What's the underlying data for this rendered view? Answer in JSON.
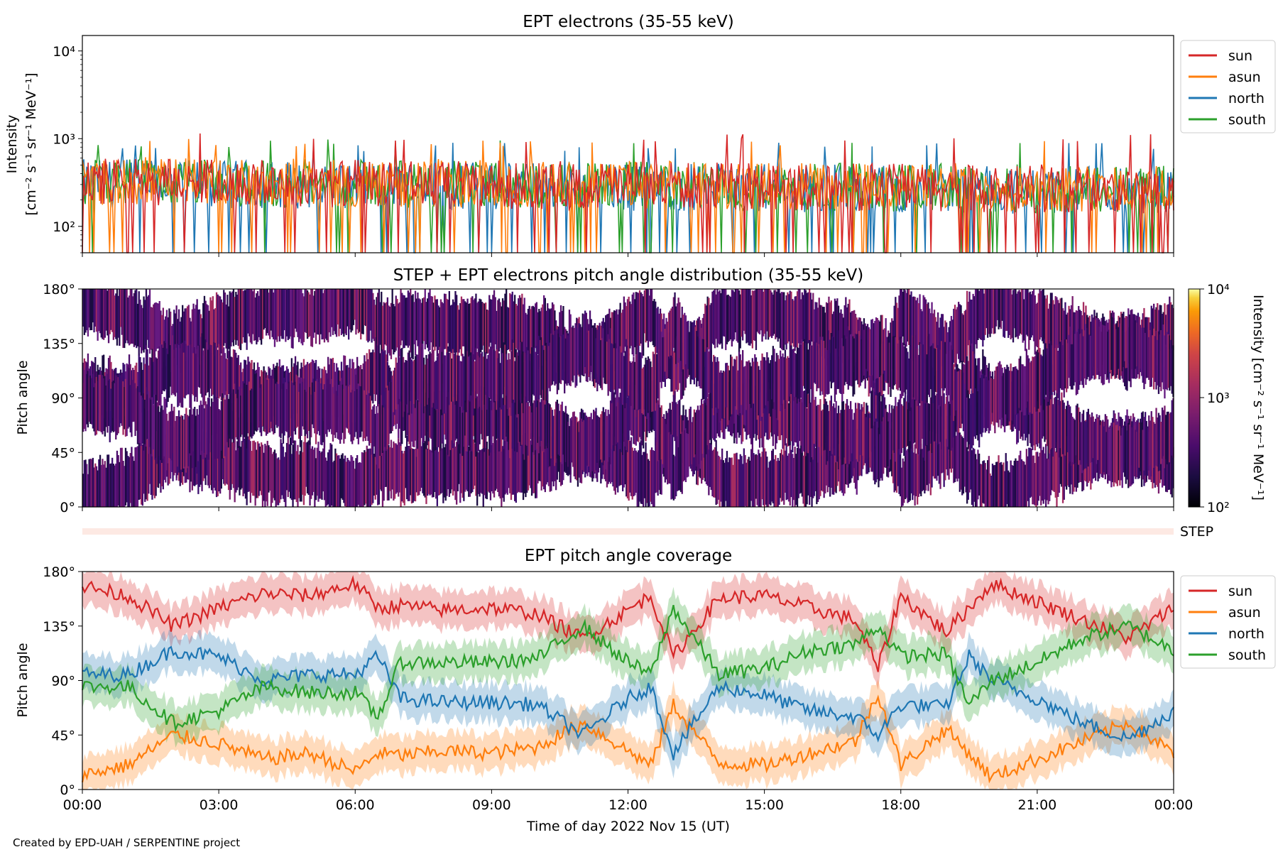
{
  "footer": {
    "credit": "Created by EPD-UAH / SERPENTINE project"
  },
  "panels": {
    "intensity": {
      "title": "EPT electrons (35-55 keV)",
      "ylabel_line1": "Intensity",
      "ylabel_line2": "[cm⁻² s⁻¹ sr⁻¹ MeV⁻¹]",
      "legend": [
        "sun",
        "asun",
        "north",
        "south"
      ]
    },
    "pad": {
      "title": "STEP + EPT electrons pitch angle distribution (35-55 keV)",
      "ylabel": "Pitch angle",
      "colorbar_label": "Intensity [cm⁻² s⁻¹ sr⁻¹ MeV⁻¹]",
      "colorbar_ticks": [
        "10⁴",
        "10³",
        "10²"
      ]
    },
    "step": {
      "label": "STEP"
    },
    "coverage": {
      "title": "EPT pitch angle coverage",
      "ylabel": "Pitch angle",
      "xlabel": "Time of day 2022 Nov 15 (UT)",
      "legend": [
        "sun",
        "asun",
        "north",
        "south"
      ]
    }
  },
  "chart_data": [
    {
      "type": "line",
      "title": "EPT electrons (35-55 keV)",
      "ylabel": "Intensity [cm⁻² s⁻¹ sr⁻¹ MeV⁻¹]",
      "yscale": "log",
      "ylim": [
        50,
        15000
      ],
      "yticks": [
        "10²",
        "10³",
        "10⁴"
      ],
      "legend_position": "outside-right",
      "series": [
        {
          "name": "sun",
          "color": "#d62728",
          "typical_value": 320,
          "min_value": 100,
          "max_value": 1150
        },
        {
          "name": "asun",
          "color": "#ff7f0e",
          "typical_value": 330,
          "min_value": 50,
          "max_value": 1000
        },
        {
          "name": "north",
          "color": "#1f77b4",
          "typical_value": 310,
          "min_value": 50,
          "max_value": 900
        },
        {
          "name": "south",
          "color": "#2ca02c",
          "typical_value": 320,
          "min_value": 50,
          "max_value": 1000
        }
      ]
    },
    {
      "type": "heatmap",
      "title": "STEP + EPT electrons pitch angle distribution (35-55 keV)",
      "ylabel": "Pitch angle",
      "ylim": [
        0,
        180
      ],
      "yticks": [
        "0°",
        "45°",
        "90°",
        "135°",
        "180°"
      ],
      "colorscale": "inferno",
      "color_range": [
        100,
        10000
      ],
      "color_scale_type": "log",
      "colorbar_label": "Intensity [cm⁻² s⁻¹ sr⁻¹ MeV⁻¹]",
      "typical_value": 300
    },
    {
      "type": "line",
      "title": "EPT pitch angle coverage",
      "xlabel": "Time of day 2022 Nov 15 (UT)",
      "ylabel": "Pitch angle",
      "ylim": [
        0,
        180
      ],
      "yticks": [
        "0°",
        "45°",
        "90°",
        "135°",
        "180°"
      ],
      "x_range": [
        "00:00",
        "24:00"
      ],
      "xticks": [
        "00:00",
        "03:00",
        "06:00",
        "09:00",
        "12:00",
        "15:00",
        "18:00",
        "21:00",
        "00:00"
      ],
      "band_halfwidth_deg": 15,
      "legend_position": "outside-right",
      "x": [
        0,
        1,
        2,
        3,
        4,
        5,
        6,
        6.5,
        7,
        8,
        9,
        10,
        11,
        12,
        12.5,
        13,
        14,
        15,
        16,
        17,
        17.5,
        18,
        19,
        19.5,
        20,
        21,
        22,
        23,
        24
      ],
      "series": [
        {
          "name": "sun",
          "color": "#d62728",
          "values": [
            168,
            160,
            135,
            150,
            162,
            160,
            170,
            150,
            152,
            148,
            150,
            145,
            125,
            148,
            160,
            110,
            158,
            160,
            150,
            140,
            100,
            160,
            130,
            150,
            170,
            155,
            140,
            125,
            150
          ]
        },
        {
          "name": "asun",
          "color": "#ff7f0e",
          "values": [
            12,
            20,
            45,
            38,
            25,
            30,
            15,
            30,
            28,
            32,
            30,
            35,
            55,
            32,
            20,
            70,
            22,
            20,
            30,
            40,
            80,
            20,
            50,
            30,
            10,
            25,
            40,
            55,
            30
          ]
        },
        {
          "name": "north",
          "color": "#1f77b4",
          "values": [
            95,
            95,
            115,
            110,
            90,
            95,
            95,
            110,
            75,
            72,
            72,
            70,
            45,
            75,
            85,
            30,
            85,
            78,
            65,
            60,
            45,
            70,
            68,
            110,
            90,
            75,
            55,
            42,
            65
          ]
        },
        {
          "name": "south",
          "color": "#2ca02c",
          "values": [
            85,
            85,
            55,
            65,
            85,
            80,
            80,
            60,
            105,
            105,
            105,
            108,
            135,
            105,
            95,
            150,
            95,
            100,
            115,
            120,
            135,
            110,
            112,
            70,
            90,
            105,
            125,
            135,
            115
          ]
        }
      ]
    }
  ]
}
